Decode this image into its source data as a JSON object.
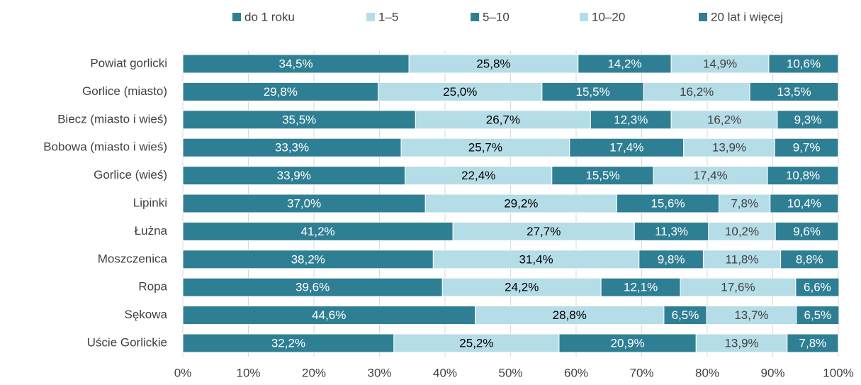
{
  "chart_data": {
    "type": "stacked_barh",
    "categories": [
      "Powiat gorlicki",
      "Gorlice (miasto)",
      "Biecz (miasto i wieś)",
      "Bobowa (miasto i wieś)",
      "Gorlice (wieś)",
      "Lipinki",
      "Łużna",
      "Moszczenica",
      "Ropa",
      "Sękowa",
      "Uście Gorlickie"
    ],
    "series": [
      {
        "name": "do 1 roku",
        "color": "#2f7f94",
        "label_color": "#ffffff",
        "values": [
          34.5,
          29.8,
          35.5,
          33.3,
          33.9,
          37.0,
          41.2,
          38.2,
          39.6,
          44.6,
          32.2
        ],
        "value_labels": [
          "34,5%",
          "29,8%",
          "35,5%",
          "33,3%",
          "33,9%",
          "37,0%",
          "41,2%",
          "38,2%",
          "39,6%",
          "44,6%",
          "32,2%"
        ]
      },
      {
        "name": "1–5",
        "color": "#b5dde7",
        "label_color": "#000000",
        "values": [
          25.8,
          25.0,
          26.7,
          25.7,
          22.4,
          29.2,
          27.7,
          31.4,
          24.2,
          28.8,
          25.2
        ],
        "value_labels": [
          "25,8%",
          "25,0%",
          "26,7%",
          "25,7%",
          "22,4%",
          "29,2%",
          "27,7%",
          "31,4%",
          "24,2%",
          "28,8%",
          "25,2%"
        ]
      },
      {
        "name": "5–10",
        "color": "#2f7f94",
        "label_color": "#ffffff",
        "values": [
          14.2,
          15.5,
          12.3,
          17.4,
          15.5,
          15.6,
          11.3,
          9.8,
          12.1,
          6.5,
          20.9
        ],
        "value_labels": [
          "14,2%",
          "15,5%",
          "12,3%",
          "17,4%",
          "15,5%",
          "15,6%",
          "11,3%",
          "9,8%",
          "12,1%",
          "6,5%",
          "20,9%"
        ]
      },
      {
        "name": "10–20",
        "color": "#b5dde7",
        "label_color": "#404040",
        "values": [
          14.9,
          16.2,
          16.2,
          13.9,
          17.4,
          7.8,
          10.2,
          11.8,
          17.6,
          13.7,
          13.9
        ],
        "value_labels": [
          "14,9%",
          "16,2%",
          "16,2%",
          "13,9%",
          "17,4%",
          "7,8%",
          "10,2%",
          "11,8%",
          "17,6%",
          "13,7%",
          "13,9%"
        ]
      },
      {
        "name": "20 lat i więcej",
        "color": "#2f7f94",
        "label_color": "#ffffff",
        "values": [
          10.6,
          13.5,
          9.3,
          9.7,
          10.8,
          10.4,
          9.6,
          8.8,
          6.6,
          6.5,
          7.8
        ],
        "value_labels": [
          "10,6%",
          "13,5%",
          "9,3%",
          "9,7%",
          "10,8%",
          "10,4%",
          "9,6%",
          "8,8%",
          "6,6%",
          "6,5%",
          "7,8%"
        ]
      }
    ],
    "xlim": [
      0,
      100
    ],
    "xticks": [
      {
        "value": 0,
        "label": "0%"
      },
      {
        "value": 10,
        "label": "10%"
      },
      {
        "value": 20,
        "label": "20%"
      },
      {
        "value": 30,
        "label": "30%"
      },
      {
        "value": 40,
        "label": "40%"
      },
      {
        "value": 50,
        "label": "50%"
      },
      {
        "value": 60,
        "label": "60%"
      },
      {
        "value": 70,
        "label": "70%"
      },
      {
        "value": 80,
        "label": "80%"
      },
      {
        "value": 90,
        "label": "90%"
      },
      {
        "value": 100,
        "label": "100%"
      }
    ],
    "grid": true,
    "legend": "top"
  }
}
